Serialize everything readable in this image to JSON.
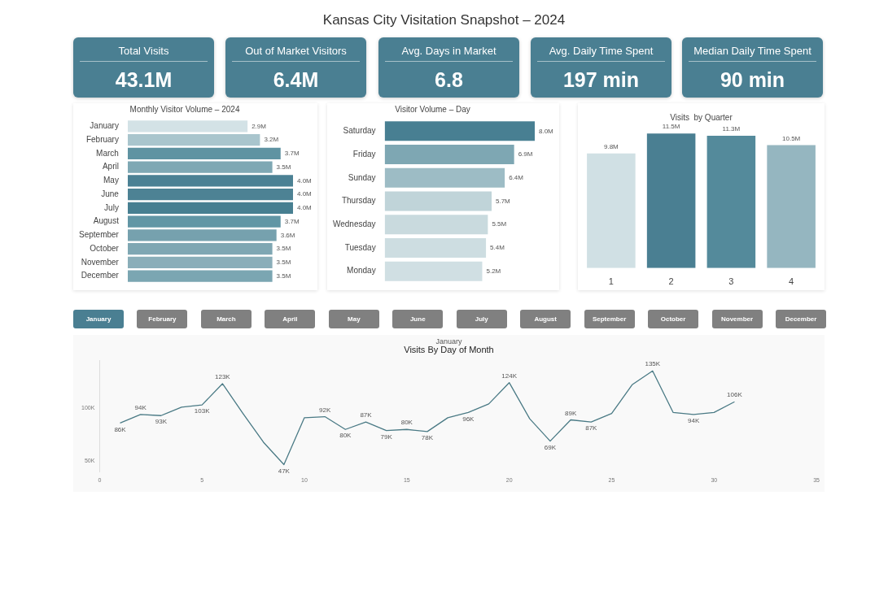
{
  "chart_data": [
    {
      "type": "other",
      "title": "Kansas City Visitation Snapshot – 2024"
    },
    {
      "type": "other",
      "title": "Total Visits",
      "annotations": [
        "43.1M"
      ]
    },
    {
      "type": "other",
      "title": "Out of Market Visitors",
      "annotations": [
        "6.4M"
      ]
    },
    {
      "type": "other",
      "title": "Avg. Days in Market",
      "annotations": [
        "6.8"
      ]
    },
    {
      "type": "other",
      "title": "Avg. Daily Time Spent",
      "annotations": [
        "197 min"
      ]
    },
    {
      "type": "other",
      "title": "Median Daily Time Spent",
      "annotations": [
        "90 min"
      ]
    },
    {
      "type": "bar",
      "title": "Monthly Visitor Volume – 2024",
      "orientation": "horizontal",
      "tick_labels": "y",
      "categories": [
        "January",
        "February",
        "March",
        "April",
        "May",
        "June",
        "July",
        "August",
        "September",
        "October",
        "November",
        "December"
      ],
      "values": [
        2.9,
        3.2,
        3.7,
        3.5,
        4.0,
        4.0,
        4.0,
        3.7,
        3.6,
        3.5,
        3.5,
        3.5
      ],
      "value_labels": [
        "2.9M",
        "3.2M",
        "3.7M",
        "3.5M",
        "4.0M",
        "4.0M",
        "4.0M",
        "3.7M",
        "3.6M",
        "3.5M",
        "3.5M",
        "3.5M"
      ],
      "colors": [
        "#d3e2e6",
        "#a9c5cd",
        "#5f93a2",
        "#7fa8b4",
        "#4b8194",
        "#4d8294",
        "#477f91",
        "#6196a5",
        "#76a1ae",
        "#7fa7b3",
        "#8aaeb9",
        "#7ba6b2"
      ]
    },
    {
      "type": "bar",
      "title": "Visitor Volume – Day",
      "orientation": "horizontal",
      "tick_labels": "y",
      "categories": [
        "Saturday",
        "Friday",
        "Sunday",
        "Thursday",
        "Wednesday",
        "Tuesday",
        "Monday"
      ],
      "values": [
        8.0,
        6.9,
        6.4,
        5.7,
        5.5,
        5.4,
        5.2
      ],
      "value_labels": [
        "8.0M",
        "6.9M",
        "6.4M",
        "5.7M",
        "5.5M",
        "5.4M",
        "5.2M"
      ],
      "colors": [
        "#487f92",
        "#7ea7b3",
        "#9dbcc5",
        "#c0d4d9",
        "#c9dade",
        "#cddde1",
        "#d0dfe3"
      ]
    },
    {
      "type": "bar",
      "title": "Visits  by Quarter",
      "tick_labels": "x",
      "categories": [
        "1",
        "2",
        "3",
        "4"
      ],
      "values": [
        9.8,
        11.5,
        11.3,
        10.5
      ],
      "value_labels": [
        "9.8M",
        "11.5M",
        "11.3M",
        "10.5M"
      ],
      "colors": [
        "#d0e0e4",
        "#4a7f92",
        "#548a9b",
        "#95b6c0"
      ]
    },
    {
      "type": "other",
      "categories": [
        "January",
        "February",
        "March",
        "April",
        "May",
        "June",
        "July",
        "August",
        "September",
        "October",
        "November",
        "December"
      ]
    },
    {
      "type": "line",
      "title": "Visits By Day of Month",
      "subtitle": "January",
      "marker": "none",
      "grid": false,
      "x": [
        1,
        2,
        3,
        4,
        5,
        6,
        7,
        8,
        9,
        10,
        11,
        12,
        13,
        14,
        15,
        16,
        17,
        18,
        19,
        20,
        21,
        22,
        23,
        24,
        25,
        26,
        27,
        28,
        29,
        30,
        31
      ],
      "series": [
        {
          "color": "#4a7a85",
          "values": [
            86,
            94,
            93,
            101,
            103,
            123,
            95,
            68,
            47,
            91,
            92,
            80,
            87,
            79,
            80,
            78,
            91,
            96,
            104,
            124,
            90,
            69,
            89,
            87,
            95,
            122,
            135,
            96,
            94,
            96,
            106
          ],
          "value_labels": [
            "86K",
            "94K",
            "93K",
            null,
            "103K",
            "123K",
            null,
            null,
            "47K",
            null,
            "92K",
            "80K",
            "87K",
            "79K",
            "80K",
            "78K",
            null,
            "96K",
            null,
            "124K",
            null,
            "69K",
            "89K",
            "87K",
            null,
            null,
            "135K",
            null,
            "94K",
            null,
            "106K"
          ]
        }
      ],
      "xlim": [
        0,
        35
      ],
      "xticks": [
        0,
        5,
        10,
        15,
        20,
        25,
        30,
        35
      ],
      "ylim": [
        40,
        145
      ],
      "yticks": [
        {
          "value": 50,
          "label": "50K"
        },
        {
          "value": 100,
          "label": "100K"
        }
      ]
    }
  ]
}
